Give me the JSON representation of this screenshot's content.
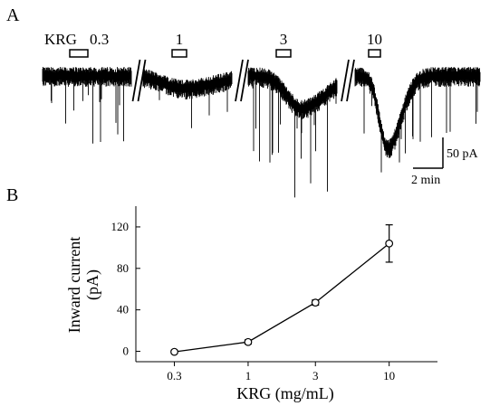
{
  "panel_a": {
    "label": "A",
    "drug_prefix": "KRG",
    "concentrations": [
      "0.3",
      "1",
      "3",
      "10"
    ],
    "scale_bar": {
      "amplitude": "50 pA",
      "time": "2 min"
    }
  },
  "panel_b": {
    "label": "B"
  },
  "chart_data": {
    "type": "line",
    "title": "",
    "xlabel": "KRG (mg/mL)",
    "ylabel_line1": "Inward current",
    "ylabel_line2": "(pA)",
    "x_scale": "log",
    "x": [
      0.3,
      1,
      3,
      10
    ],
    "x_tick_labels": [
      "0.3",
      "1",
      "3",
      "10"
    ],
    "y_ticks": [
      0,
      40,
      80,
      120
    ],
    "ylim": [
      -10,
      140
    ],
    "xlim": [
      0.16,
      22
    ],
    "series": [
      {
        "values": [
          -0.5,
          9,
          47,
          104
        ],
        "error": [
          1.5,
          2,
          2.5,
          18
        ],
        "marker": "open-circle"
      }
    ]
  }
}
